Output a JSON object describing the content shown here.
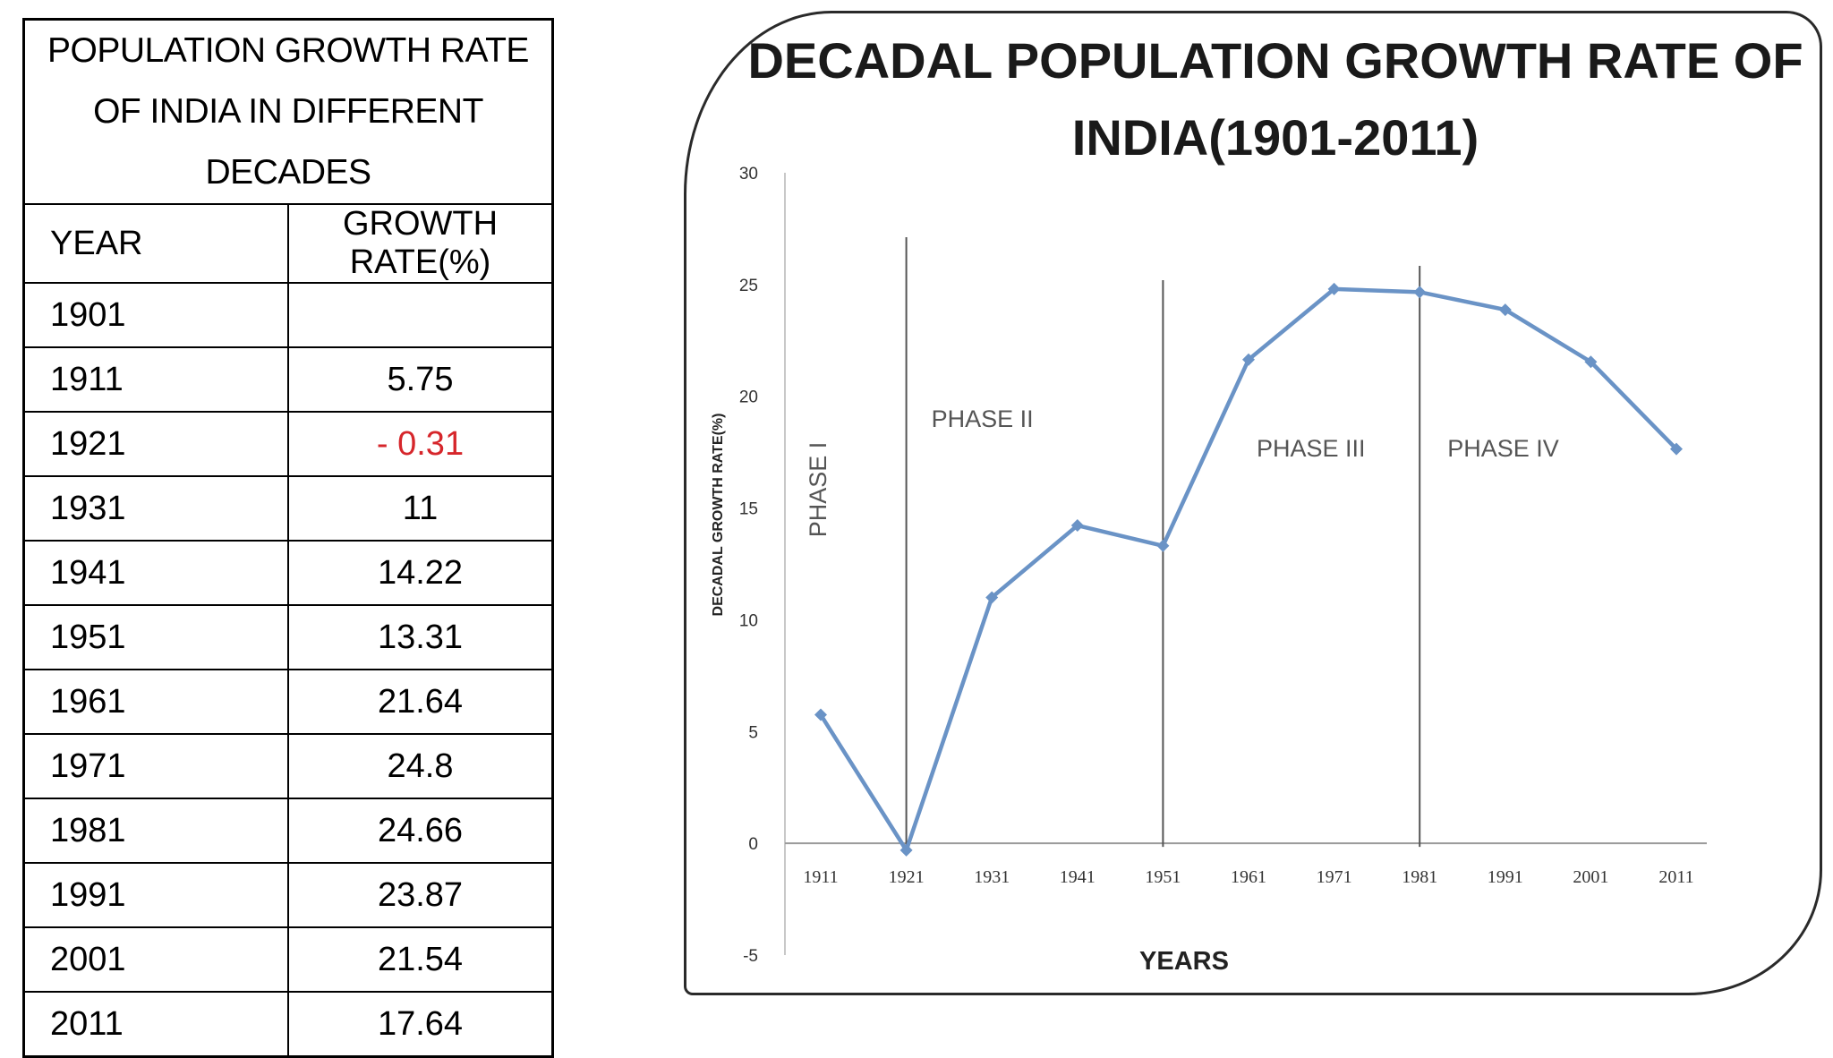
{
  "table": {
    "title": "POPULATION GROWTH RATE OF INDIA IN DIFFERENT DECADES",
    "headers": [
      "YEAR",
      "GROWTH RATE(%)"
    ],
    "rows": [
      {
        "year": "1901",
        "rate": ""
      },
      {
        "year": "1911",
        "rate": "5.75"
      },
      {
        "year": "1921",
        "rate": "- 0.31",
        "negative": true
      },
      {
        "year": "1931",
        "rate": "11"
      },
      {
        "year": "1941",
        "rate": "14.22"
      },
      {
        "year": "1951",
        "rate": "13.31"
      },
      {
        "year": "1961",
        "rate": "21.64"
      },
      {
        "year": "1971",
        "rate": "24.8"
      },
      {
        "year": "1981",
        "rate": "24.66"
      },
      {
        "year": "1991",
        "rate": "23.87"
      },
      {
        "year": "2001",
        "rate": "21.54"
      },
      {
        "year": "2011",
        "rate": "17.64"
      }
    ],
    "negative_color": "#d6262b"
  },
  "chart_data": {
    "type": "line",
    "title_lines": [
      "DECADAL POPULATION GROWTH RATE OF",
      "INDIA(1901-2011)"
    ],
    "xlabel": "YEARS",
    "ylabel": "DECADAL GROWTH RATE(%)",
    "ylim": [
      -5,
      30
    ],
    "yticks": [
      "30",
      "25",
      "20",
      "15",
      "10",
      "5",
      "0",
      "-5"
    ],
    "ytick_values": [
      30,
      25,
      20,
      15,
      10,
      5,
      0,
      -5
    ],
    "categories": [
      "1911",
      "1921",
      "1931",
      "1941",
      "1951",
      "1961",
      "1971",
      "1981",
      "1991",
      "2001",
      "2011"
    ],
    "series": [
      {
        "values": [
          5.75,
          -0.31,
          11,
          14.22,
          13.31,
          21.64,
          24.8,
          24.66,
          23.87,
          21.54,
          17.64
        ]
      }
    ],
    "line_color": "#6a93c6",
    "phases": [
      {
        "label": "PHASE I",
        "orientation": "vertical"
      },
      {
        "label": "PHASE II",
        "orientation": "horizontal"
      },
      {
        "label": "PHASE III",
        "orientation": "horizontal"
      },
      {
        "label": "PHASE IV",
        "orientation": "horizontal"
      }
    ],
    "phase_dividers_at": [
      "1921",
      "1951",
      "1981"
    ],
    "grid": false,
    "legend": "none"
  }
}
